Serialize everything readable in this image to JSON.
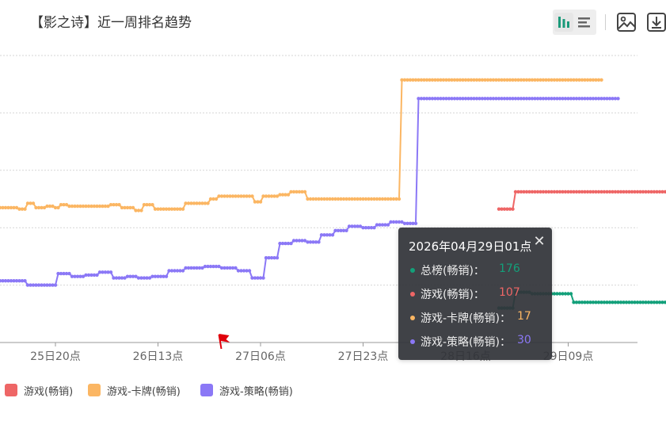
{
  "title": "【影之诗】近一周排名趋势",
  "toolbar": {
    "bar_view_icon": "bar-chart-icon",
    "list_view_icon": "list-icon",
    "image_icon": "image-icon",
    "download_icon": "download-icon"
  },
  "legend": [
    {
      "label": "游戏(畅销)",
      "color": "#ee6666"
    },
    {
      "label": "游戏-卡牌(畅销)",
      "color": "#fbb663"
    },
    {
      "label": "游戏-策略(畅销)",
      "color": "#8b78f6"
    }
  ],
  "tooltip": {
    "title": "2026年04月29日01点",
    "close_icon": "close-icon",
    "rows": [
      {
        "label": "总榜(畅销)：",
        "value": "176",
        "color": "#13a07a"
      },
      {
        "label": "游戏(畅销)：",
        "value": "107",
        "color": "#ee6666"
      },
      {
        "label": "游戏-卡牌(畅销)：",
        "value": "17",
        "color": "#fbb663"
      },
      {
        "label": "游戏-策略(畅销)：",
        "value": "30",
        "color": "#8b78f6"
      }
    ]
  },
  "chart_data": {
    "type": "line",
    "y_inverse": true,
    "ylim": [
      200,
      0
    ],
    "grid": true,
    "legend_position": "bottom-left",
    "x_tick_labels": [
      "25日20点",
      "26日13点",
      "27日06点",
      "27日23点",
      "28日16点",
      "29日09点"
    ],
    "x_tick_index": [
      20,
      57,
      94,
      131,
      168,
      205
    ],
    "marker": {
      "index": 79,
      "icon": "red-flag-icon",
      "color": "#e0000b"
    },
    "series": [
      {
        "name": "总榜(畅销)",
        "color": "#13a07a",
        "x_start": 180,
        "values": [
          176,
          176,
          176,
          176,
          176,
          176,
          165,
          165,
          165,
          165,
          165,
          165,
          166,
          166,
          166,
          166,
          166,
          166,
          166,
          166,
          166,
          166,
          166,
          166,
          166,
          166,
          166,
          172,
          172,
          172,
          172,
          172,
          172,
          172,
          172,
          172,
          172,
          172,
          172,
          172,
          172,
          172,
          172,
          172,
          172,
          172,
          172,
          172,
          172,
          172,
          172,
          172,
          172,
          172,
          172,
          172,
          172,
          172,
          172,
          172,
          172,
          172,
          172,
          172,
          172,
          172,
          172,
          172,
          172,
          172,
          172,
          172,
          172,
          172,
          172,
          172,
          172,
          172,
          172,
          172,
          172,
          172,
          172,
          172,
          172,
          172,
          172,
          172,
          172,
          172,
          172,
          172,
          172,
          172,
          172,
          172,
          172,
          172,
          172,
          172,
          172,
          172,
          172,
          172,
          172,
          172,
          172,
          172,
          172,
          172,
          172,
          172,
          172,
          172,
          172,
          172,
          172,
          172,
          172,
          172,
          172,
          172,
          172,
          172,
          172,
          172,
          172,
          172,
          172,
          172,
          172,
          172,
          172,
          172,
          172,
          172,
          172,
          172,
          172,
          172,
          172,
          172,
          172,
          172,
          172,
          172,
          172,
          172,
          172,
          172,
          172,
          172,
          172,
          172,
          172,
          172,
          172,
          172,
          172,
          172,
          172,
          172,
          172,
          172,
          172,
          172,
          172,
          172,
          172,
          172,
          172,
          172,
          172,
          172,
          172,
          172,
          172,
          172,
          172,
          172,
          172,
          172,
          172,
          172,
          172,
          172,
          172,
          172,
          172,
          172,
          172,
          172,
          172,
          172,
          172,
          172,
          172,
          172,
          172,
          172,
          172,
          172,
          172,
          172,
          172,
          172,
          172,
          172,
          172,
          172,
          172,
          172,
          172,
          172,
          172,
          172,
          172,
          172,
          172,
          172,
          172,
          172,
          172,
          172,
          172
        ]
      },
      {
        "name": "游戏(畅销)",
        "color": "#ee6666",
        "x_start": 180,
        "values": [
          107,
          107,
          107,
          107,
          107,
          107,
          95,
          95,
          95,
          95,
          95,
          95,
          95,
          95,
          95,
          95,
          95,
          95,
          95,
          95,
          95,
          95,
          95,
          95,
          95,
          95,
          95,
          95,
          95,
          95,
          95,
          95,
          95,
          95,
          95,
          95,
          95,
          95,
          95,
          95,
          95,
          95,
          95,
          95,
          95,
          95,
          95,
          95,
          95,
          95,
          95,
          95,
          95,
          95,
          95,
          95,
          95,
          95,
          95,
          95,
          95,
          95,
          95,
          95,
          95,
          95,
          95,
          95,
          95,
          95,
          95,
          95,
          95,
          95,
          95,
          95,
          95,
          95,
          95,
          95,
          95,
          95,
          95,
          95,
          95,
          95,
          95,
          95,
          95,
          95,
          95,
          95,
          95,
          95,
          95,
          95,
          95,
          95,
          95,
          95,
          95,
          95,
          95,
          95,
          95,
          95,
          95,
          95,
          95,
          95,
          95,
          95,
          95,
          95,
          95,
          95,
          95,
          95,
          95,
          95,
          95,
          95,
          95,
          95,
          95,
          95,
          95,
          95,
          95,
          95,
          95,
          95,
          95,
          95,
          95,
          95,
          95,
          95,
          95,
          95,
          95,
          95,
          95,
          95,
          95,
          95,
          95,
          95,
          95,
          95,
          95,
          95,
          95,
          95,
          95,
          95,
          95,
          95,
          95,
          95,
          95,
          95,
          95,
          95,
          95,
          95,
          95,
          95,
          95,
          95,
          95,
          95,
          95,
          95,
          95,
          95,
          95,
          95,
          95,
          95,
          95,
          95,
          95,
          95,
          95,
          95,
          95,
          95,
          95,
          95,
          95,
          95,
          95,
          95,
          95,
          95,
          95,
          95,
          95,
          95,
          95,
          95,
          95,
          95,
          95,
          95,
          95,
          95,
          95,
          95,
          95,
          95,
          95,
          95,
          95
        ]
      },
      {
        "name": "游戏-卡牌(畅销)",
        "color": "#fbb663",
        "x_start": 0,
        "values": [
          106,
          106,
          106,
          106,
          106,
          106,
          106,
          107,
          107,
          107,
          103,
          103,
          103,
          106,
          106,
          106,
          106,
          105,
          105,
          105,
          106,
          106,
          104,
          104,
          104,
          105,
          105,
          105,
          105,
          105,
          105,
          105,
          105,
          105,
          105,
          105,
          105,
          105,
          105,
          105,
          104,
          104,
          104,
          104,
          106,
          106,
          106,
          106,
          106,
          108,
          108,
          108,
          104,
          104,
          104,
          104,
          107,
          107,
          107,
          107,
          107,
          107,
          107,
          107,
          107,
          107,
          107,
          103,
          103,
          103,
          103,
          103,
          103,
          103,
          103,
          103,
          100,
          100,
          100,
          98,
          98,
          98,
          98,
          98,
          98,
          98,
          98,
          98,
          98,
          98,
          98,
          98,
          102,
          102,
          102,
          98,
          98,
          98,
          98,
          98,
          98,
          97,
          97,
          97,
          97,
          95,
          95,
          95,
          95,
          95,
          95,
          100,
          100,
          100,
          100,
          100,
          100,
          100,
          100,
          100,
          100,
          100,
          100,
          100,
          100,
          100,
          100,
          100,
          100,
          100,
          100,
          100,
          100,
          100,
          100,
          100,
          100,
          100,
          100,
          100,
          100,
          100,
          100,
          100,
          100,
          17,
          17,
          17,
          17,
          17,
          17,
          17,
          17,
          17,
          17,
          17,
          17,
          17,
          17,
          17,
          17,
          17,
          17,
          17,
          17,
          17,
          17,
          17,
          17,
          17,
          17,
          17,
          17,
          17,
          17,
          17,
          17,
          17,
          17,
          17,
          17,
          17,
          17,
          17,
          17,
          17,
          17,
          17,
          17,
          17,
          17,
          17,
          17,
          17,
          17,
          17,
          17,
          17,
          17,
          17,
          17,
          17,
          17,
          17,
          17,
          17,
          17,
          17,
          17,
          17,
          17,
          17,
          17,
          17,
          17,
          17,
          17,
          17
        ]
      },
      {
        "name": "游戏-策略(畅销)",
        "color": "#8b78f6",
        "x_start": 0,
        "values": [
          157,
          157,
          157,
          157,
          157,
          157,
          157,
          157,
          157,
          157,
          160,
          160,
          160,
          160,
          160,
          160,
          160,
          160,
          160,
          160,
          160,
          152,
          152,
          152,
          152,
          152,
          154,
          154,
          154,
          154,
          154,
          153,
          153,
          153,
          153,
          153,
          151,
          151,
          151,
          151,
          151,
          155,
          155,
          155,
          155,
          155,
          154,
          154,
          154,
          154,
          155,
          155,
          155,
          155,
          155,
          154,
          154,
          154,
          154,
          154,
          154,
          150,
          150,
          150,
          150,
          150,
          150,
          148,
          148,
          148,
          148,
          148,
          148,
          148,
          147,
          147,
          147,
          147,
          147,
          147,
          148,
          148,
          148,
          148,
          148,
          148,
          150,
          150,
          150,
          150,
          150,
          155,
          155,
          155,
          155,
          155,
          141,
          141,
          141,
          141,
          141,
          131,
          131,
          131,
          131,
          131,
          129,
          129,
          129,
          129,
          129,
          130,
          130,
          130,
          130,
          130,
          125,
          125,
          125,
          125,
          125,
          122,
          122,
          122,
          122,
          122,
          119,
          119,
          119,
          119,
          119,
          120,
          120,
          120,
          120,
          120,
          118,
          118,
          118,
          118,
          118,
          116,
          116,
          116,
          116,
          116,
          117,
          117,
          117,
          117,
          117,
          30,
          30,
          30,
          30,
          30,
          30,
          30,
          30,
          30,
          30,
          30,
          30,
          30,
          30,
          30,
          30,
          30,
          30,
          30,
          30,
          30,
          30,
          30,
          30,
          30,
          30,
          30,
          30,
          30,
          30,
          30,
          30,
          30,
          30,
          30,
          30,
          30,
          30,
          30,
          30,
          30,
          30,
          30,
          30,
          30,
          30,
          30,
          30,
          30,
          30,
          30,
          30,
          30,
          30,
          30,
          30,
          30,
          30,
          30,
          30,
          30,
          30,
          30,
          30,
          30,
          30,
          30,
          30,
          30,
          30,
          30,
          30,
          30
        ]
      }
    ]
  }
}
